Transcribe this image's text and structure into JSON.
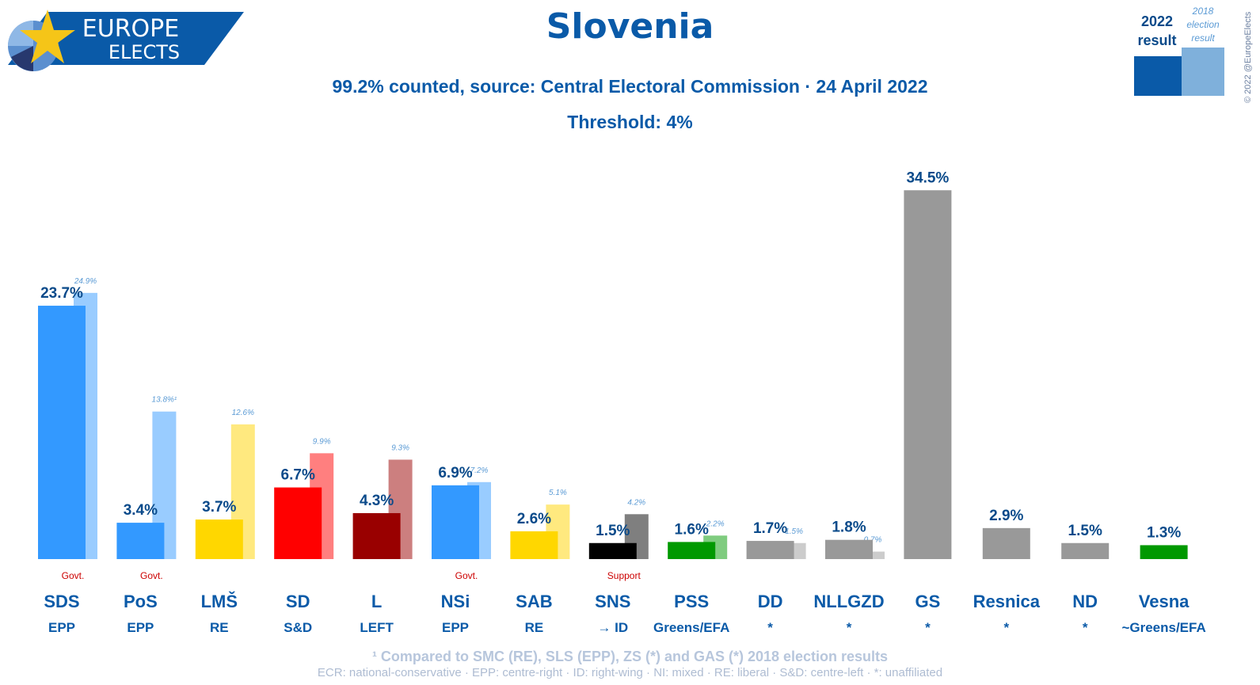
{
  "logo": {
    "line1": "EUROPE",
    "line2": "ELECTS"
  },
  "title": "Slovenia",
  "subtitle": "99.2% counted, source: Central Electoral Commission · 24 April 2022",
  "threshold": "Threshold: 4%",
  "legend": {
    "current_year": "2022",
    "current_label": "result",
    "previous_year": "2018",
    "previous_line1": "election",
    "previous_line2": "result",
    "current_color": "#0a5aa8",
    "previous_color": "#7fb0db"
  },
  "copyright": "© 2022 @EuropeElects",
  "footnote": "¹ Compared to SMC (RE), SLS (EPP), ZS (*) and GAS (*) 2018 election results",
  "glossary": "ECR: national-conservative · EPP: centre-right · ID: right-wing · NI: mixed · RE: liberal · S&D: centre-left · *: unaffiliated",
  "chart_data": {
    "type": "bar",
    "categories": [
      "SDS",
      "PoS",
      "LMŠ",
      "SD",
      "L",
      "NSi",
      "SAB",
      "SNS",
      "PSS",
      "DD",
      "NLLGZD",
      "GS",
      "Resnica",
      "ND",
      "Vesna"
    ],
    "groups": [
      "EPP",
      "EPP",
      "RE",
      "S&D",
      "LEFT",
      "EPP",
      "RE",
      "→ ID",
      "Greens/EFA",
      "*",
      "*",
      "*",
      "*",
      "*",
      "~Greens/EFA"
    ],
    "status": [
      "Govt.",
      "Govt.",
      "",
      "",
      "",
      "Govt.",
      "",
      "Support",
      "",
      "",
      "",
      "",
      "",
      "",
      ""
    ],
    "series": [
      {
        "name": "2022 result",
        "values": [
          23.7,
          3.4,
          3.7,
          6.7,
          4.3,
          6.9,
          2.6,
          1.5,
          1.6,
          1.7,
          1.8,
          34.5,
          2.9,
          1.5,
          1.3
        ],
        "labels": [
          "23.7%",
          "3.4%",
          "3.7%",
          "6.7%",
          "4.3%",
          "6.9%",
          "2.6%",
          "1.5%",
          "1.6%",
          "1.7%",
          "1.8%",
          "34.5%",
          "2.9%",
          "1.5%",
          "1.3%"
        ]
      },
      {
        "name": "2018 election result",
        "values": [
          24.9,
          13.8,
          12.6,
          9.9,
          9.3,
          7.2,
          5.1,
          4.2,
          2.2,
          1.5,
          0.7,
          null,
          null,
          null,
          null
        ],
        "labels": [
          "24.9%",
          "13.8%¹",
          "12.6%",
          "9.9%",
          "9.3%",
          "7.2%",
          "5.1%",
          "4.2%",
          "2.2%",
          "1.5%",
          "0.7%",
          "",
          "",
          "",
          ""
        ]
      }
    ],
    "colors": [
      "#3399ff",
      "#3399ff",
      "#ffd700",
      "#ff0000",
      "#990000",
      "#3399ff",
      "#ffd700",
      "#000000",
      "#009900",
      "#999999",
      "#999999",
      "#999999",
      "#999999",
      "#999999",
      "#009900"
    ],
    "previous_colors": [
      "#99ccff",
      "#99ccff",
      "#ffe97f",
      "#ff7f7f",
      "#cc7f7f",
      "#99ccff",
      "#ffe97f",
      "#7f7f7f",
      "#7fcc7f",
      "#cccccc",
      "#cccccc",
      "",
      "",
      "",
      ""
    ],
    "ylim": [
      0,
      35
    ]
  }
}
